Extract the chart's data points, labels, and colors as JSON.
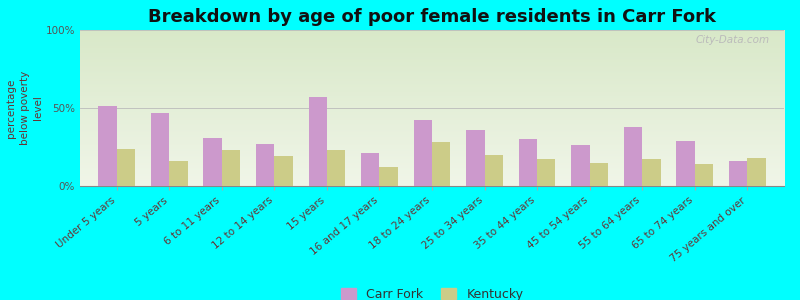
{
  "title": "Breakdown by age of poor female residents in Carr Fork",
  "ylabel": "percentage\nbelow poverty\nlevel",
  "background_color": "#00FFFF",
  "plot_bg_top": "#d8e8c8",
  "plot_bg_bottom": "#f0f5e8",
  "categories": [
    "Under 5 years",
    "5 years",
    "6 to 11 years",
    "12 to 14 years",
    "15 years",
    "16 and 17 years",
    "18 to 24 years",
    "25 to 34 years",
    "35 to 44 years",
    "45 to 54 years",
    "55 to 64 years",
    "65 to 74 years",
    "75 years and over"
  ],
  "carr_fork": [
    51,
    47,
    31,
    27,
    57,
    21,
    42,
    36,
    30,
    26,
    38,
    29,
    16
  ],
  "kentucky": [
    24,
    16,
    23,
    19,
    23,
    12,
    28,
    20,
    17,
    15,
    17,
    14,
    18
  ],
  "carr_fork_color": "#cc99cc",
  "kentucky_color": "#cccc88",
  "yticks": [
    0,
    50,
    100
  ],
  "ytick_labels": [
    "0%",
    "50%",
    "100%"
  ],
  "ylim": [
    0,
    100
  ],
  "bar_width": 0.35,
  "legend_carr_fork": "Carr Fork",
  "legend_kentucky": "Kentucky",
  "title_fontsize": 13,
  "axis_label_fontsize": 7.5,
  "tick_fontsize": 7.5,
  "xlabel_rotation": 40
}
